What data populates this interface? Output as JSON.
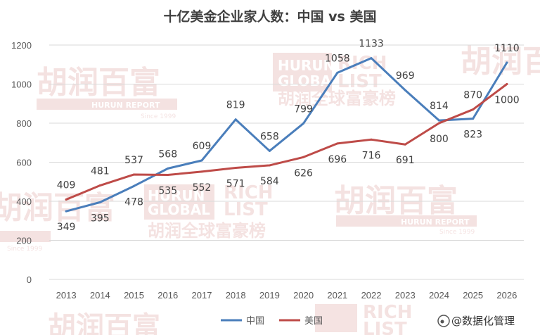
{
  "chart_data": {
    "type": "line",
    "title": "十亿美金企业家人数：中国 vs 美国",
    "categories": [
      "2013",
      "2014",
      "2015",
      "2016",
      "2017",
      "2018",
      "2019",
      "2020",
      "2021",
      "2022",
      "2023",
      "2024",
      "2025",
      "2026"
    ],
    "series": [
      {
        "name": "中国",
        "color": "#4a7ebb",
        "values": [
          349,
          395,
          478,
          568,
          609,
          819,
          658,
          799,
          1058,
          1133,
          969,
          814,
          823,
          1110
        ]
      },
      {
        "name": "美国",
        "color": "#be4b48",
        "values": [
          409,
          481,
          537,
          535,
          552,
          571,
          584,
          626,
          696,
          716,
          691,
          800,
          870,
          1000
        ]
      }
    ],
    "ylim": [
      0,
      1200
    ],
    "yticks": [
      0,
      200,
      400,
      600,
      800,
      1000,
      1200
    ],
    "grid": true,
    "legend": "bottom-center",
    "xlabel": "",
    "ylabel": ""
  },
  "source": {
    "handle": "@数据化管理"
  },
  "watermarks": [
    {
      "text": "胡润百富",
      "sub": "HURUN REPORT",
      "since": "Since 1999"
    },
    {
      "text": "HURUN GLOBAL RICH LIST",
      "sub": "胡润全球富豪榜"
    }
  ]
}
